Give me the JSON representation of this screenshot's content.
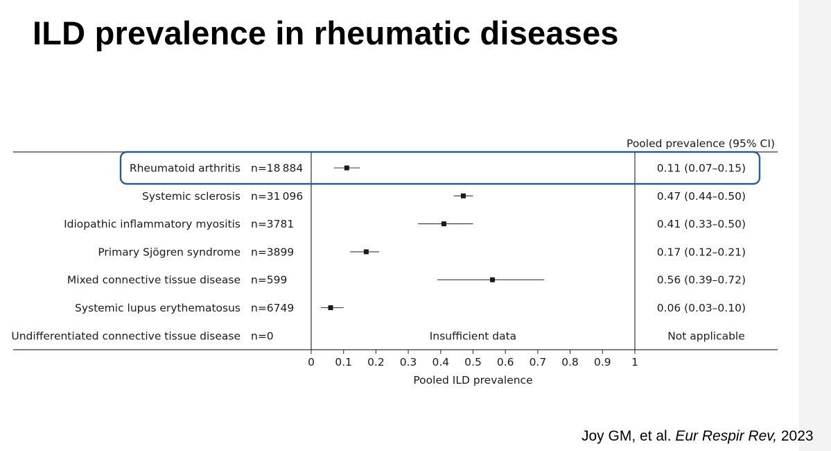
{
  "title": "ILD prevalence in rheumatic diseases",
  "citation": {
    "authors": "Joy GM, et al. ",
    "journal": "Eur Respir Rev,",
    "year": " 2023"
  },
  "colors": {
    "highlight": "#2f5a8f",
    "marker": "#1a1a1a",
    "strip": "#f3f3f3"
  },
  "chart_data": {
    "type": "forest",
    "column_header": "Pooled prevalence (95% CI)",
    "xlabel": "Pooled ILD prevalence",
    "xlim": [
      0,
      1
    ],
    "xticks": [
      0,
      0.1,
      0.2,
      0.3,
      0.4,
      0.5,
      0.6,
      0.7,
      0.8,
      0.9,
      1
    ],
    "xtick_labels": [
      "0",
      "0.1",
      "0.2",
      "0.3",
      "0.4",
      "0.5",
      "0.6",
      "0.7",
      "0.8",
      "0.9",
      "1"
    ],
    "highlighted_row": "Rheumatoid arthritis",
    "rows": [
      {
        "label": "Rheumatoid arthritis",
        "n": "n=18 884",
        "estimate": 0.11,
        "lower": 0.07,
        "upper": 0.15,
        "ci_text": "0.11 (0.07–0.15)"
      },
      {
        "label": "Systemic sclerosis",
        "n": "n=31 096",
        "estimate": 0.47,
        "lower": 0.44,
        "upper": 0.5,
        "ci_text": "0.47 (0.44–0.50)"
      },
      {
        "label": "Idiopathic inflammatory myositis",
        "n": "n=3781",
        "estimate": 0.41,
        "lower": 0.33,
        "upper": 0.5,
        "ci_text": "0.41 (0.33–0.50)"
      },
      {
        "label": "Primary Sjögren syndrome",
        "n": "n=3899",
        "estimate": 0.17,
        "lower": 0.12,
        "upper": 0.21,
        "ci_text": "0.17 (0.12–0.21)"
      },
      {
        "label": "Mixed connective tissue disease",
        "n": "n=599",
        "estimate": 0.56,
        "lower": 0.39,
        "upper": 0.72,
        "ci_text": "0.56 (0.39–0.72)"
      },
      {
        "label": "Systemic lupus erythematosus",
        "n": "n=6749",
        "estimate": 0.06,
        "lower": 0.03,
        "upper": 0.1,
        "ci_text": "0.06 (0.03–0.10)"
      },
      {
        "label": "Undifferentiated connective tissue disease",
        "n": "n=0",
        "estimate": null,
        "lower": null,
        "upper": null,
        "note": "Insufficient data",
        "ci_text": "Not applicable"
      }
    ]
  }
}
